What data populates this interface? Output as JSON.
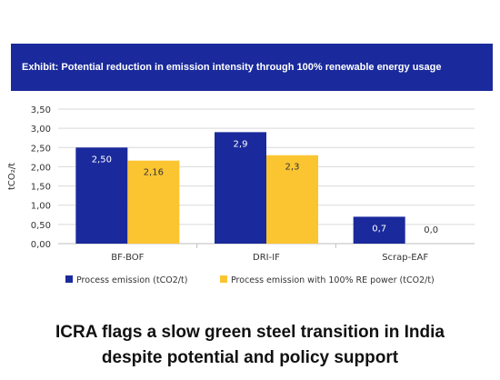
{
  "banner": {
    "title": "Exhibit: Potential reduction in emission intensity through 100% renewable energy usage"
  },
  "headline": {
    "line1": "ICRA flags a slow green steel transition in India",
    "line2": "despite potential and policy support"
  },
  "chart_data": {
    "type": "bar",
    "title": "",
    "xlabel": "",
    "ylabel": "tCO₂/t",
    "ylim": [
      0,
      3.5
    ],
    "yticks": [
      "0,00",
      "0,50",
      "1,00",
      "1,50",
      "2,00",
      "2,50",
      "3,00",
      "3,50"
    ],
    "yticks_values": [
      0,
      0.5,
      1.0,
      1.5,
      2.0,
      2.5,
      3.0,
      3.5
    ],
    "grid": true,
    "legend": "bottom",
    "categories": [
      "BF-BOF",
      "DRI-IF",
      "Scrap-EAF"
    ],
    "series": [
      {
        "name": "Process emission (tCO2/t)",
        "color": "#1a2a9c",
        "values": [
          2.5,
          2.9,
          0.7
        ],
        "labels": [
          "2,50",
          "2,9",
          "0,7"
        ]
      },
      {
        "name": "Process emission with 100% RE power (tCO2/t)",
        "color": "#fbc531",
        "values": [
          2.16,
          2.3,
          0.0
        ],
        "labels": [
          "2,16",
          "2,3",
          "0,0"
        ]
      }
    ]
  }
}
